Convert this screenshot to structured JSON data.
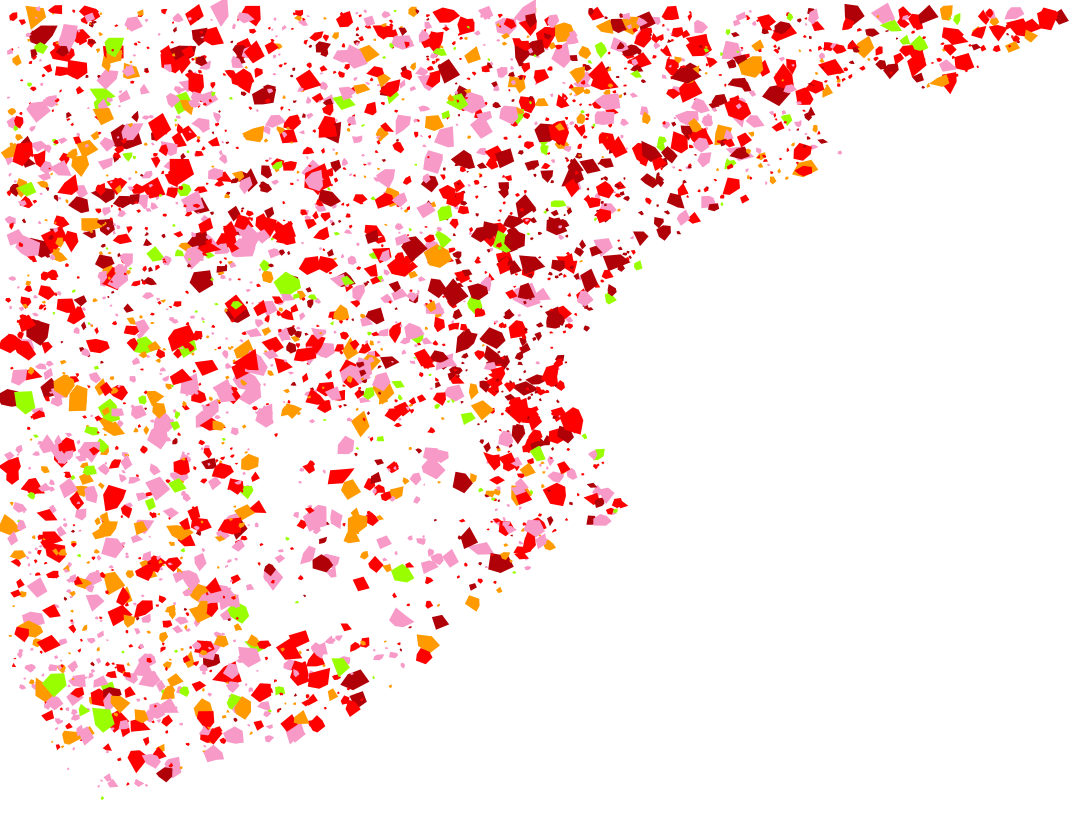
{
  "map": {
    "background": "#ffffff",
    "land_use_classes": [
      {
        "key": "red",
        "color": "#ff0000",
        "weight": 0.38
      },
      {
        "key": "dark-red",
        "color": "#b00008",
        "weight": 0.14
      },
      {
        "key": "pink",
        "color": "#f79ac8",
        "weight": 0.28
      },
      {
        "key": "orange",
        "color": "#ff9a00",
        "weight": 0.14
      },
      {
        "key": "lime",
        "color": "#99ff00",
        "weight": 0.06
      }
    ]
  }
}
